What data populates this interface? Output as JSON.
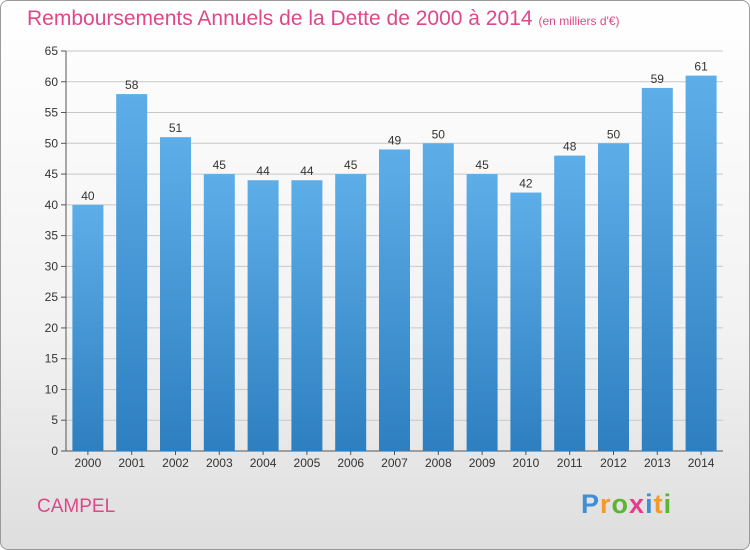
{
  "title": "Remboursements Annuels de la Dette de 2000 à 2014",
  "subtitle": "(en milliers d'€)",
  "commune": "CAMPEL",
  "brand": {
    "letters": [
      "P",
      "r",
      "o",
      "x",
      "i",
      "t",
      "i"
    ],
    "colors": [
      "#3f8fd6",
      "#f39a2a",
      "#5bb531",
      "#e63c8d",
      "#3f8fd6",
      "#f39a2a",
      "#5bb531"
    ]
  },
  "colors": {
    "bar_top": "#5daee8",
    "bar_bottom": "#2e7fc0",
    "title": "#e0478a",
    "grid": "#c8c8c8",
    "axis_text": "#333333"
  },
  "chart_data": {
    "type": "bar",
    "categories": [
      "2000",
      "2001",
      "2002",
      "2003",
      "2004",
      "2005",
      "2006",
      "2007",
      "2008",
      "2009",
      "2010",
      "2011",
      "2012",
      "2013",
      "2014"
    ],
    "values": [
      40,
      58,
      51,
      45,
      44,
      44,
      45,
      49,
      50,
      45,
      42,
      48,
      50,
      59,
      61
    ],
    "data_labels": [
      "40",
      "58",
      "51",
      "45",
      "44",
      "44",
      "45",
      "49",
      "50",
      "45",
      "42",
      "48",
      "50",
      "59",
      "61"
    ],
    "yticks": [
      "0",
      "5",
      "10",
      "15",
      "20",
      "25",
      "30",
      "35",
      "40",
      "45",
      "50",
      "55",
      "60",
      "65"
    ],
    "ylim": [
      0,
      65
    ],
    "ystep": 5,
    "grid": true,
    "xlabel": "",
    "ylabel": ""
  }
}
